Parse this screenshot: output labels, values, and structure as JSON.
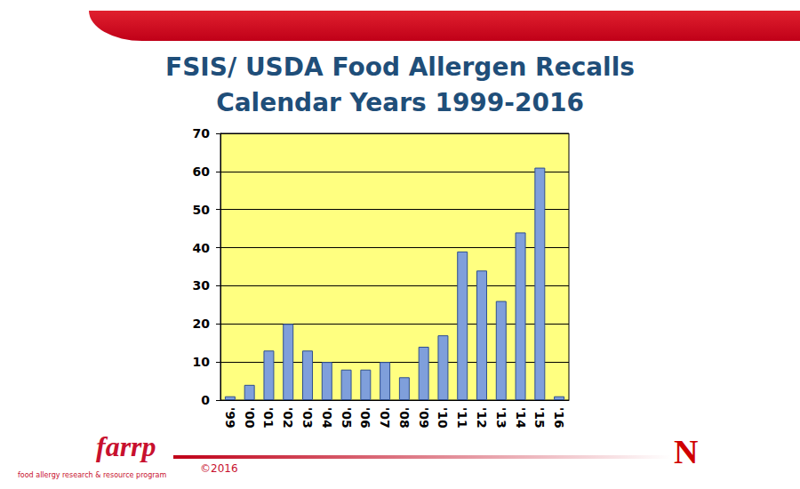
{
  "chart_data": {
    "type": "bar",
    "title": "FSIS/ USDA Food Allergen Recalls",
    "subtitle": "Calendar Years 1999-2016",
    "categories": [
      "'99",
      "'00",
      "'01",
      "'02",
      "'03",
      "'04",
      "'05",
      "'06",
      "'07",
      "'08",
      "'09",
      "'10",
      "'11",
      "'12",
      "'13",
      "'14",
      "'15",
      "'16"
    ],
    "values": [
      1,
      4,
      13,
      20,
      13,
      10,
      8,
      8,
      10,
      6,
      14,
      17,
      39,
      34,
      26,
      44,
      61,
      1
    ],
    "color": "#7f9fdb",
    "ylim": [
      0,
      70
    ],
    "yticks": [
      0,
      10,
      20,
      30,
      40,
      50,
      60,
      70
    ],
    "grid": true,
    "annotations": [
      "farrp",
      "food allergy research & resource program",
      "©2016",
      "N"
    ]
  }
}
